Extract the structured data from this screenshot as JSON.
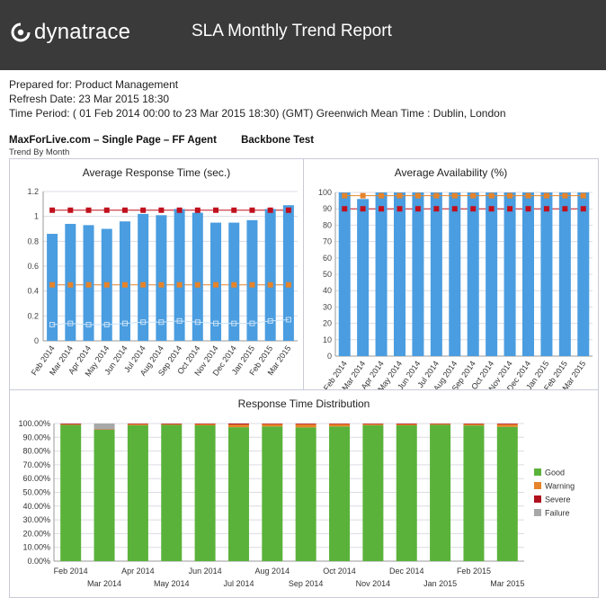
{
  "header": {
    "logo_text": "dynatrace",
    "title": "SLA Monthly Trend Report"
  },
  "meta": {
    "prepared_for": "Prepared for: Product Management",
    "refresh_date": "Refresh Date:  23 Mar 2015 18:30",
    "time_period": "Time Period:  ( 01 Feb 2014 00:00 to 23 Mar 2015 18:30)  (GMT) Greenwich Mean Time : Dublin, London"
  },
  "agent": {
    "name": "MaxForLive.com – Single Page – FF Agent",
    "test": "Backbone Test",
    "trend": "Trend By Month"
  },
  "colors": {
    "bar_blue": "#4a9de0",
    "threshold_red": "#c0101e",
    "threshold_orange": "#e6842a",
    "good": "#5ab23a",
    "warning": "#e6842a",
    "severe": "#b0101c",
    "failure": "#a8a8a8"
  },
  "chart_data": [
    {
      "type": "bar",
      "title": "Average Response Time (sec.)",
      "categories": [
        "Feb 2014",
        "Mar 2014",
        "Apr 2014",
        "May 2014",
        "Jun 2014",
        "Jul 2014",
        "Aug 2014",
        "Sep 2014",
        "Oct 2014",
        "Nov 2014",
        "Dec 2014",
        "Jan 2015",
        "Feb 2015",
        "Mar 2015"
      ],
      "series": [
        {
          "values": [
            0.86,
            0.94,
            0.93,
            0.9,
            0.96,
            1.02,
            1.01,
            1.06,
            1.03,
            0.95,
            0.95,
            0.97,
            1.06,
            1.09
          ]
        },
        {
          "values": [
            1.05,
            1.05,
            1.05,
            1.05,
            1.05,
            1.05,
            1.05,
            1.05,
            1.05,
            1.05,
            1.05,
            1.05,
            1.05,
            1.05
          ]
        },
        {
          "values": [
            0.45,
            0.45,
            0.45,
            0.45,
            0.45,
            0.45,
            0.45,
            0.45,
            0.45,
            0.45,
            0.45,
            0.45,
            0.45,
            0.45
          ]
        },
        {
          "values": [
            0.13,
            0.14,
            0.13,
            0.13,
            0.14,
            0.15,
            0.15,
            0.16,
            0.15,
            0.14,
            0.14,
            0.14,
            0.16,
            0.17
          ]
        }
      ],
      "yticks": [
        "0",
        "0.2",
        "0.4",
        "0.6",
        "0.8",
        "1",
        "1.2"
      ],
      "ylim": [
        0,
        1.2
      ]
    },
    {
      "type": "bar",
      "title": "Average Availability (%)",
      "categories": [
        "Feb 2014",
        "Mar 2014",
        "Apr 2014",
        "May 2014",
        "Jun 2014",
        "Jul 2014",
        "Aug 2014",
        "Sep 2014",
        "Oct 2014",
        "Nov 2014",
        "Dec 2014",
        "Jan 2015",
        "Feb 2015",
        "Mar 2015"
      ],
      "series": [
        {
          "values": [
            100,
            96,
            100,
            100,
            100,
            100,
            100,
            100,
            100,
            100,
            100,
            100,
            100,
            100
          ]
        },
        {
          "values": [
            90,
            90,
            90,
            90,
            90,
            90,
            90,
            90,
            90,
            90,
            90,
            90,
            90,
            90
          ]
        },
        {
          "values": [
            98,
            98,
            98,
            98,
            98,
            98,
            98,
            98,
            98,
            98,
            98,
            98,
            98,
            98
          ]
        }
      ],
      "yticks": [
        "0",
        "10",
        "20",
        "30",
        "40",
        "50",
        "60",
        "70",
        "80",
        "90",
        "100"
      ],
      "ylim": [
        0,
        100
      ]
    },
    {
      "type": "bar",
      "title": "Response Time Distribution",
      "categories": [
        "Feb 2014",
        "Mar 2014",
        "Apr 2014",
        "May 2014",
        "Jun 2014",
        "Jul 2014",
        "Aug 2014",
        "Sep 2014",
        "Oct 2014",
        "Nov 2014",
        "Dec 2014",
        "Jan 2015",
        "Feb 2015",
        "Mar 2015"
      ],
      "stacked": true,
      "series": [
        {
          "name": "Good",
          "values": [
            99.0,
            95.6,
            98.8,
            99.0,
            98.7,
            97.3,
            97.9,
            97.2,
            97.9,
            98.8,
            98.7,
            99.1,
            98.6,
            97.6
          ]
        },
        {
          "name": "Warning",
          "values": [
            0.5,
            0.2,
            0.8,
            0.6,
            0.9,
            2.0,
            1.7,
            2.3,
            1.7,
            0.8,
            0.8,
            0.6,
            1.0,
            1.9
          ]
        },
        {
          "name": "Severe",
          "values": [
            0.5,
            0.2,
            0.4,
            0.4,
            0.4,
            0.7,
            0.4,
            0.5,
            0.4,
            0.4,
            0.5,
            0.3,
            0.4,
            0.5
          ]
        },
        {
          "name": "Failure",
          "values": [
            0.0,
            4.0,
            0.0,
            0.0,
            0.0,
            0.0,
            0.0,
            0.0,
            0.0,
            0.0,
            0.0,
            0.0,
            0.0,
            0.0
          ]
        }
      ],
      "yticks": [
        "0.00%",
        "10.00%",
        "20.00%",
        "30.00%",
        "40.00%",
        "50.00%",
        "60.00%",
        "70.00%",
        "80.00%",
        "90.00%",
        "100.00%"
      ],
      "ylim": [
        0,
        100
      ],
      "legend_position": "right"
    }
  ]
}
